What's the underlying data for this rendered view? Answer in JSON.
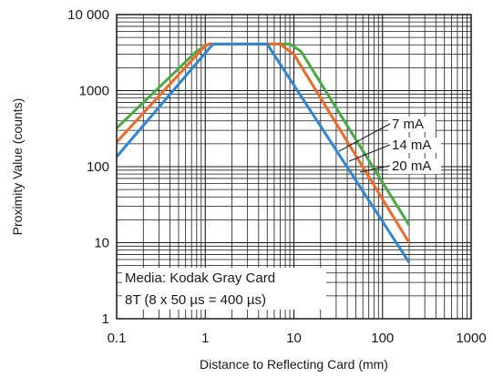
{
  "chart_data": {
    "type": "line",
    "x_scale": "log",
    "y_scale": "log",
    "xlim": [
      0.1,
      1000
    ],
    "ylim": [
      1,
      10000
    ],
    "xlabel": "Distance to Reflecting Card (mm)",
    "ylabel": "Proximity Value (counts)",
    "x_ticks": [
      {
        "value": 0.1,
        "label": "0.1"
      },
      {
        "value": 1,
        "label": "1"
      },
      {
        "value": 10,
        "label": "10"
      },
      {
        "value": 100,
        "label": "100"
      },
      {
        "value": 1000,
        "label": "1000"
      }
    ],
    "y_ticks": [
      {
        "value": 1,
        "label": "1"
      },
      {
        "value": 10,
        "label": "10"
      },
      {
        "value": 100,
        "label": "100"
      },
      {
        "value": 1000,
        "label": "1000"
      },
      {
        "value": 10000,
        "label": "10 000"
      }
    ],
    "grid": true,
    "series": [
      {
        "name": "7 mA",
        "color": "#4aaa42",
        "points": [
          [
            0.1,
            320
          ],
          [
            0.8,
            3300
          ],
          [
            1.1,
            4095
          ],
          [
            9,
            4095
          ],
          [
            12,
            3300
          ],
          [
            200,
            17
          ]
        ]
      },
      {
        "name": "14 mA",
        "color": "#f06a25",
        "points": [
          [
            0.1,
            210
          ],
          [
            1.0,
            3900
          ],
          [
            1.1,
            4095
          ],
          [
            7,
            4095
          ],
          [
            10,
            3000
          ],
          [
            200,
            10
          ]
        ]
      },
      {
        "name": "20 mA",
        "color": "#2e86d4",
        "points": [
          [
            0.1,
            135
          ],
          [
            1.2,
            4000
          ],
          [
            1.3,
            4095
          ],
          [
            5,
            4095
          ],
          [
            200,
            5.5
          ]
        ]
      }
    ],
    "annotation": {
      "lines": [
        "Media: Kodak Gray Card",
        "8T (8 x 50 µs = 400 µs)"
      ]
    }
  }
}
